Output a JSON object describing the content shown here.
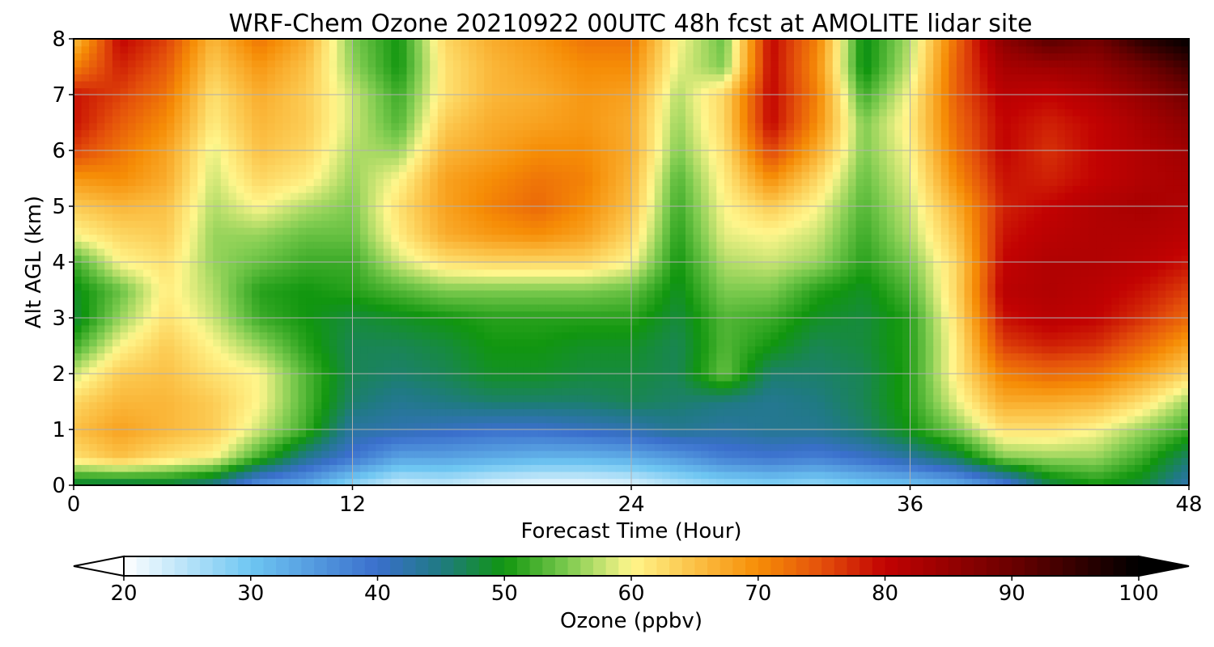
{
  "chart_data": {
    "type": "heatmap",
    "title": "WRF-Chem Ozone  20210922 00UTC 48h fcst at AMOLITE lidar site",
    "xlabel": "Forecast Time (Hour)",
    "ylabel": "Alt AGL (km)",
    "xlim": [
      0,
      48
    ],
    "ylim": [
      0,
      8
    ],
    "x_ticks": [
      "0",
      "12",
      "24",
      "36",
      "48"
    ],
    "y_ticks": [
      "0",
      "1",
      "2",
      "3",
      "4",
      "5",
      "6",
      "7",
      "8"
    ],
    "grid": true,
    "x": [
      0,
      2,
      4,
      6,
      8,
      10,
      12,
      14,
      16,
      18,
      20,
      22,
      24,
      26,
      28,
      30,
      32,
      34,
      36,
      38,
      40,
      42,
      44,
      46,
      48
    ],
    "y": [
      0,
      0.5,
      1,
      1.5,
      2,
      2.5,
      3,
      3.5,
      4,
      4.5,
      5,
      5.5,
      6,
      6.5,
      7,
      7.5,
      8
    ],
    "z": [
      [
        47,
        46,
        47,
        44,
        35,
        33,
        27,
        23,
        24,
        22,
        21,
        21,
        22,
        25,
        27,
        28,
        27,
        29,
        30,
        32,
        37,
        47,
        50,
        48,
        42
      ],
      [
        62,
        65,
        62,
        60,
        52,
        44,
        39,
        34,
        34,
        33,
        32,
        32,
        33,
        35,
        38,
        39,
        38,
        40,
        43,
        47,
        55,
        56,
        56,
        52,
        46
      ],
      [
        65,
        68,
        66,
        64,
        58,
        52,
        43,
        42,
        41,
        40,
        40,
        41,
        42,
        44,
        43,
        44,
        44,
        46,
        50,
        55,
        62,
        62,
        60,
        56,
        52
      ],
      [
        63,
        66,
        66,
        64,
        60,
        53,
        46,
        44,
        45,
        46,
        46,
        46,
        47,
        46,
        45,
        44,
        45,
        47,
        51,
        59,
        67,
        67,
        66,
        62,
        56
      ],
      [
        58,
        64,
        65,
        62,
        60,
        53,
        47,
        46,
        47,
        49,
        49,
        48,
        48,
        47,
        54,
        46,
        46,
        47,
        51,
        61,
        71,
        73,
        72,
        68,
        63
      ],
      [
        52,
        60,
        64,
        60,
        56,
        51,
        47,
        47,
        48,
        50,
        50,
        49,
        49,
        47,
        53,
        50,
        47,
        48,
        51,
        61,
        76,
        78,
        77,
        73,
        68
      ],
      [
        48,
        56,
        62,
        58,
        52,
        50,
        48,
        49,
        50,
        51,
        51,
        51,
        51,
        48,
        53,
        52,
        49,
        48,
        51,
        62,
        79,
        81,
        80,
        77,
        73
      ],
      [
        49,
        54,
        61,
        57,
        51,
        50,
        51,
        53,
        55,
        55,
        55,
        55,
        54,
        49,
        55,
        55,
        51,
        49,
        53,
        63,
        81,
        82,
        81,
        79,
        76
      ],
      [
        52,
        60,
        62,
        56,
        54,
        52,
        52,
        58,
        62,
        63,
        63,
        63,
        60,
        50,
        57,
        58,
        56,
        51,
        55,
        63,
        80,
        82,
        82,
        81,
        79
      ],
      [
        60,
        63,
        64,
        56,
        56,
        54,
        54,
        61,
        67,
        69,
        70,
        68,
        63,
        51,
        59,
        60,
        58,
        52,
        57,
        65,
        79,
        81,
        82,
        82,
        81
      ],
      [
        64,
        66,
        65,
        57,
        60,
        57,
        55,
        62,
        68,
        71,
        73,
        70,
        65,
        52,
        60,
        64,
        60,
        53,
        58,
        67,
        78,
        80,
        82,
        83,
        82
      ],
      [
        69,
        70,
        67,
        58,
        63,
        61,
        56,
        60,
        68,
        70,
        72,
        71,
        66,
        53,
        61,
        70,
        63,
        54,
        59,
        70,
        79,
        78,
        80,
        82,
        83
      ],
      [
        76,
        72,
        68,
        59,
        65,
        63,
        57,
        56,
        66,
        68,
        70,
        70,
        67,
        55,
        62,
        76,
        67,
        55,
        60,
        72,
        80,
        77,
        80,
        82,
        84
      ],
      [
        79,
        74,
        70,
        61,
        66,
        64,
        58,
        53,
        64,
        67,
        68,
        69,
        67,
        56,
        63,
        80,
        70,
        55,
        61,
        73,
        80,
        78,
        80,
        83,
        86
      ],
      [
        79,
        76,
        72,
        62,
        67,
        64,
        58,
        52,
        62,
        66,
        67,
        69,
        68,
        57,
        63,
        80,
        71,
        52,
        60,
        74,
        81,
        80,
        82,
        85,
        89
      ],
      [
        71,
        78,
        74,
        64,
        69,
        65,
        56,
        50,
        62,
        66,
        68,
        70,
        70,
        59,
        55,
        80,
        70,
        49,
        58,
        74,
        83,
        84,
        85,
        89,
        94
      ],
      [
        65,
        80,
        76,
        66,
        72,
        67,
        55,
        50,
        63,
        67,
        69,
        72,
        72,
        60,
        54,
        80,
        71,
        49,
        57,
        73,
        86,
        92,
        89,
        96,
        100
      ]
    ],
    "colorbar": {
      "label": "Ozone  (ppbv)",
      "min": 20,
      "max": 100,
      "ticks": [
        "20",
        "30",
        "40",
        "50",
        "60",
        "70",
        "80",
        "90",
        "100"
      ],
      "extend": "both"
    }
  }
}
